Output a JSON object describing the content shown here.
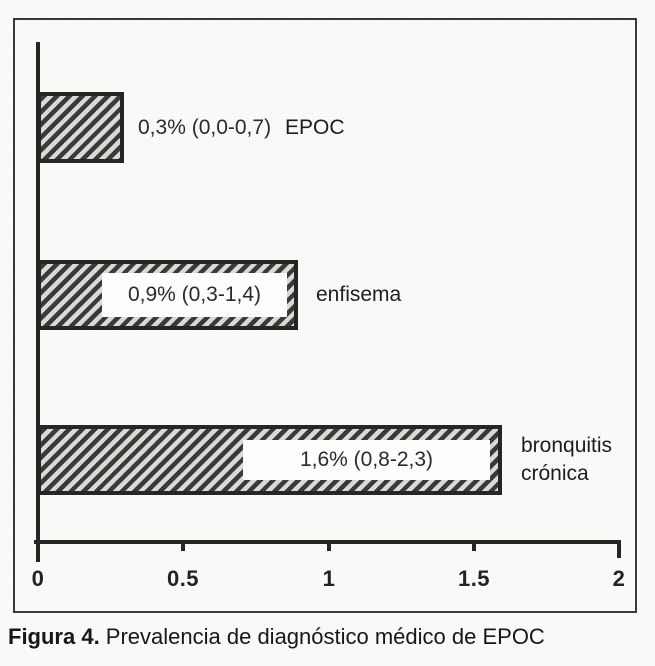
{
  "chart_data": {
    "type": "bar",
    "orientation": "horizontal",
    "title": "",
    "xlabel": "",
    "ylabel": "",
    "categories": [
      "EPOC",
      "enfisema",
      "bronquitis crónica"
    ],
    "values": [
      0.3,
      0.9,
      1.6
    ],
    "bar_labels": [
      "0,3% (0,0-0,7)",
      "0,9% (0,3-1,4)",
      "1,6% (0,8-2,3)"
    ],
    "ci_low": [
      0.0,
      0.3,
      0.8
    ],
    "ci_high": [
      0.7,
      1.4,
      2.3
    ],
    "xlim": [
      0,
      2
    ],
    "x_ticks": [
      0,
      0.5,
      1,
      1.5,
      2
    ],
    "x_tick_labels": [
      "0",
      "0.5",
      "1",
      "1.5",
      "2"
    ],
    "grid": false,
    "legend": null,
    "hatch": "diagonal-forward"
  },
  "caption": {
    "label": "Figura 4.",
    "text": " Prevalencia de diagnóstico médico de EPOC"
  },
  "colors": {
    "bar_dark": "#262626",
    "hatch_light": "#d9d9d6",
    "axis": "#262626",
    "frame_border": "#3a3a3a",
    "paper": "#fbfbf9",
    "text": "#1d1d1d"
  }
}
